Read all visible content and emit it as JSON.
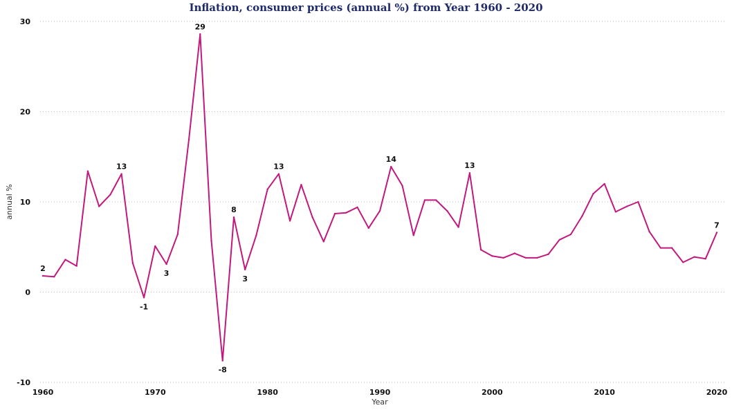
{
  "chart_data": {
    "type": "line",
    "title": "Inflation, consumer prices (annual %) from Year 1960 - 2020",
    "xlabel": "Year",
    "ylabel": "annual %",
    "xlim": [
      1960,
      2020
    ],
    "ylim": [
      -10,
      30
    ],
    "x_ticks": [
      "1960",
      "1970",
      "1980",
      "1990",
      "2000",
      "2010",
      "2020"
    ],
    "y_ticks": [
      "-10",
      "0",
      "10",
      "20",
      "30"
    ],
    "grid": true,
    "legend": "none",
    "series": [
      {
        "color": "#c2187e",
        "x": [
          1960,
          1961,
          1962,
          1963,
          1964,
          1965,
          1966,
          1967,
          1968,
          1969,
          1970,
          1971,
          1972,
          1973,
          1974,
          1975,
          1976,
          1977,
          1978,
          1979,
          1980,
          1981,
          1982,
          1983,
          1984,
          1985,
          1986,
          1987,
          1988,
          1989,
          1990,
          1991,
          1992,
          1993,
          1994,
          1995,
          1996,
          1997,
          1998,
          1999,
          2000,
          2001,
          2002,
          2003,
          2004,
          2005,
          2006,
          2007,
          2008,
          2009,
          2010,
          2011,
          2012,
          2013,
          2014,
          2015,
          2016,
          2017,
          2018,
          2019,
          2020
        ],
        "values": [
          1.8,
          1.7,
          3.6,
          2.9,
          13.4,
          9.5,
          10.8,
          13.1,
          3.2,
          -0.6,
          5.1,
          3.1,
          6.4,
          16.9,
          28.6,
          5.7,
          -7.6,
          8.3,
          2.5,
          6.3,
          11.4,
          13.1,
          7.9,
          11.9,
          8.3,
          5.6,
          8.7,
          8.8,
          9.4,
          7.1,
          9.0,
          13.9,
          11.8,
          6.3,
          10.2,
          10.2,
          9.0,
          7.2,
          13.2,
          4.7,
          4.0,
          3.8,
          4.3,
          3.8,
          3.8,
          4.2,
          5.8,
          6.4,
          8.4,
          10.9,
          12.0,
          8.9,
          9.5,
          10.0,
          6.7,
          4.9,
          4.9,
          3.3,
          3.9,
          3.7,
          6.6
        ]
      }
    ],
    "data_labels": [
      {
        "x": 1960,
        "y": 1.8,
        "text": "2",
        "pos": "above"
      },
      {
        "x": 1967,
        "y": 13.1,
        "text": "13",
        "pos": "above"
      },
      {
        "x": 1969,
        "y": -0.6,
        "text": "-1",
        "pos": "below"
      },
      {
        "x": 1971,
        "y": 3.1,
        "text": "3",
        "pos": "below"
      },
      {
        "x": 1974,
        "y": 28.6,
        "text": "29",
        "pos": "above"
      },
      {
        "x": 1976,
        "y": -7.6,
        "text": "-8",
        "pos": "below"
      },
      {
        "x": 1977,
        "y": 8.3,
        "text": "8",
        "pos": "above"
      },
      {
        "x": 1978,
        "y": 2.5,
        "text": "3",
        "pos": "below"
      },
      {
        "x": 1981,
        "y": 13.1,
        "text": "13",
        "pos": "above"
      },
      {
        "x": 1991,
        "y": 13.9,
        "text": "14",
        "pos": "above"
      },
      {
        "x": 1998,
        "y": 13.2,
        "text": "13",
        "pos": "above"
      },
      {
        "x": 2020,
        "y": 6.6,
        "text": "7",
        "pos": "above"
      }
    ]
  }
}
